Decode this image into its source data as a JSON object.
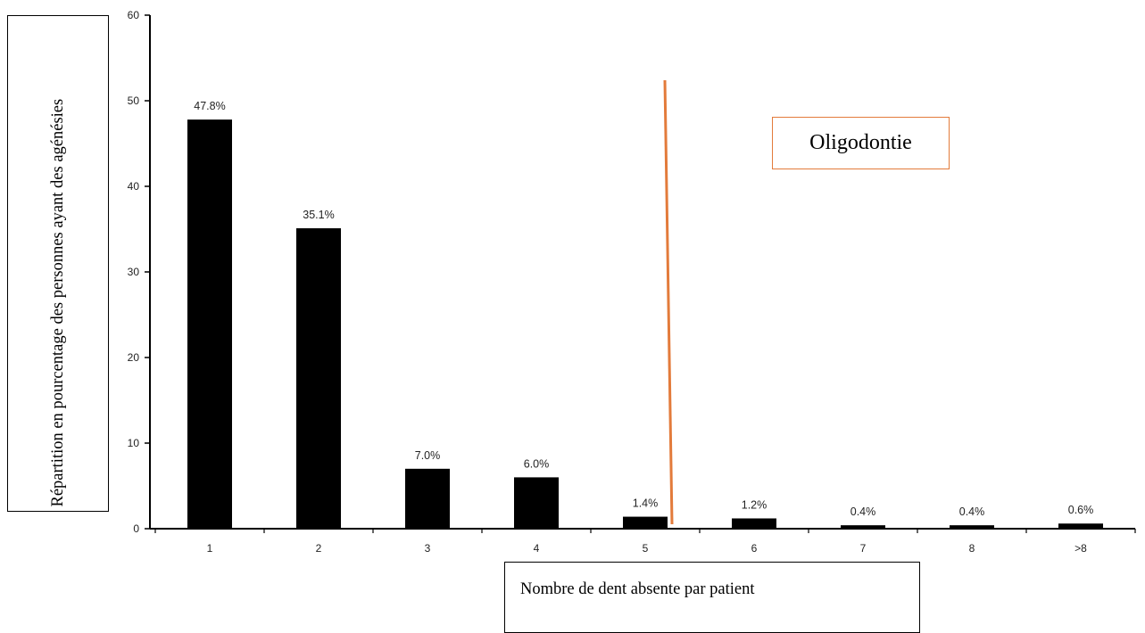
{
  "chart_data": {
    "type": "bar",
    "categories": [
      "1",
      "2",
      "3",
      "4",
      "5",
      "6",
      "7",
      "8",
      ">8"
    ],
    "values": [
      47.8,
      35.1,
      7.0,
      6.0,
      1.4,
      1.2,
      0.4,
      0.4,
      0.6
    ],
    "data_labels": [
      "47.8%",
      "35.1%",
      "7.0%",
      "6.0%",
      "1.4%",
      "1.2%",
      "0.4%",
      "0.4%",
      "0.6%"
    ],
    "ylim": [
      0,
      60
    ],
    "yticks": [
      0,
      10,
      20,
      30,
      40,
      50,
      60
    ],
    "ylabel": "Répartition en pourcentage des personnes ayant des agénésies",
    "xlabel": "Nombre de dent absente par patient",
    "annotation": {
      "text": "Oligodontie",
      "divider_between": [
        "5",
        "6"
      ],
      "color": "#e37b3b"
    },
    "bar_color": "#000000",
    "grid": false,
    "legend": "none"
  }
}
